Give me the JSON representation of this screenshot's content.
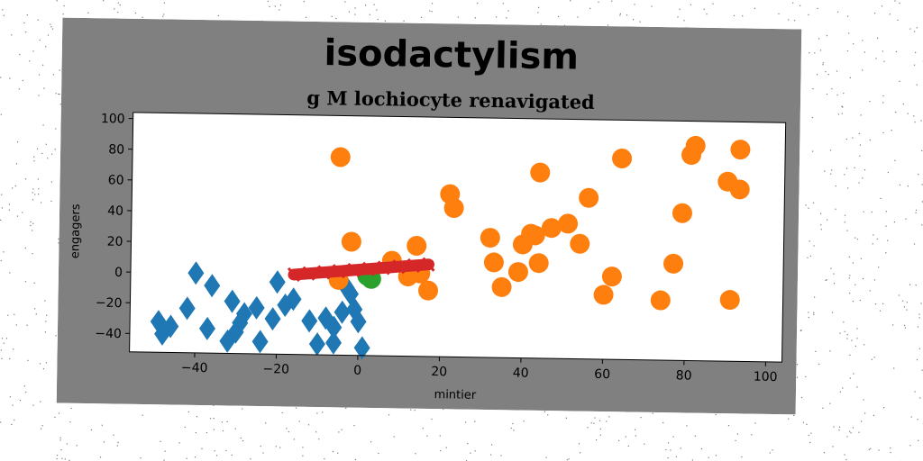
{
  "chart_data": {
    "type": "scatter",
    "title": "isodactylism",
    "subtitle": "g M lochiocyte renavigated",
    "xlabel": "mintier",
    "ylabel": "engagers",
    "xlim": [
      -56,
      104
    ],
    "ylim": [
      -52,
      104
    ],
    "xticks": [
      -40,
      -20,
      0,
      20,
      40,
      60,
      80,
      100
    ],
    "yticks": [
      -40,
      -20,
      0,
      20,
      40,
      60,
      80,
      100
    ],
    "xtick_labels": [
      "−40",
      "−20",
      "0",
      "20",
      "40",
      "60",
      "80",
      "100"
    ],
    "ytick_labels": [
      "−40",
      "−20",
      "0",
      "20",
      "40",
      "60",
      "80",
      "100"
    ],
    "grid": false,
    "colors": {
      "figure_background": "#808080",
      "plot_background": "#ffffff",
      "blue": "#1f77b4",
      "orange": "#ff7f0e",
      "green": "#2ca02c",
      "red": "#d62728"
    },
    "series": [
      {
        "marker": "diamond",
        "color": "#1f77b4",
        "points": [
          [
            -49,
            -32
          ],
          [
            -48,
            -40
          ],
          [
            -46,
            -35
          ],
          [
            -42,
            -23
          ],
          [
            -40,
            0
          ],
          [
            -37,
            -36
          ],
          [
            -36,
            -8
          ],
          [
            -32,
            -44
          ],
          [
            -31,
            -18
          ],
          [
            -30,
            -38
          ],
          [
            -29,
            -32
          ],
          [
            -28,
            -26
          ],
          [
            -24,
            -44
          ],
          [
            -25,
            -22
          ],
          [
            -21,
            -29
          ],
          [
            -20,
            -5
          ],
          [
            -18,
            -20
          ],
          [
            -16,
            -16
          ],
          [
            -12,
            -30
          ],
          [
            -10,
            -45
          ],
          [
            -8,
            -28
          ],
          [
            -6,
            -44
          ],
          [
            -4,
            -24
          ],
          [
            -2,
            -12
          ],
          [
            -1,
            -22
          ],
          [
            0,
            -30
          ],
          [
            1,
            -47
          ],
          [
            -6,
            -34
          ],
          [
            -3,
            -8
          ]
        ]
      },
      {
        "marker": "circle",
        "color": "#ff7f0e",
        "points": [
          [
            -5,
            77
          ],
          [
            -2,
            22
          ],
          [
            -5,
            -3
          ],
          [
            8,
            10
          ],
          [
            12,
            0
          ],
          [
            14,
            20
          ],
          [
            15,
            2
          ],
          [
            17,
            -9
          ],
          [
            22,
            54
          ],
          [
            23,
            45
          ],
          [
            32,
            26
          ],
          [
            33,
            10
          ],
          [
            35,
            -6
          ],
          [
            39,
            4
          ],
          [
            40,
            22
          ],
          [
            42,
            29
          ],
          [
            43,
            28
          ],
          [
            44,
            10
          ],
          [
            44,
            69
          ],
          [
            47,
            33
          ],
          [
            51,
            36
          ],
          [
            54,
            23
          ],
          [
            56,
            53
          ],
          [
            60,
            -10
          ],
          [
            62,
            2
          ],
          [
            64,
            79
          ],
          [
            74,
            -13
          ],
          [
            77,
            11
          ],
          [
            79,
            44
          ],
          [
            81,
            82
          ],
          [
            82,
            88
          ],
          [
            90,
            65
          ],
          [
            91,
            -12
          ],
          [
            93,
            60
          ],
          [
            93,
            86
          ]
        ]
      },
      {
        "marker": "circle",
        "color": "#2ca02c",
        "points": [
          [
            2,
            0
          ],
          [
            3,
            -2
          ]
        ]
      }
    ],
    "line": {
      "color": "#d62728",
      "x": [
        -16,
        17
      ],
      "y": [
        0,
        8
      ]
    }
  }
}
